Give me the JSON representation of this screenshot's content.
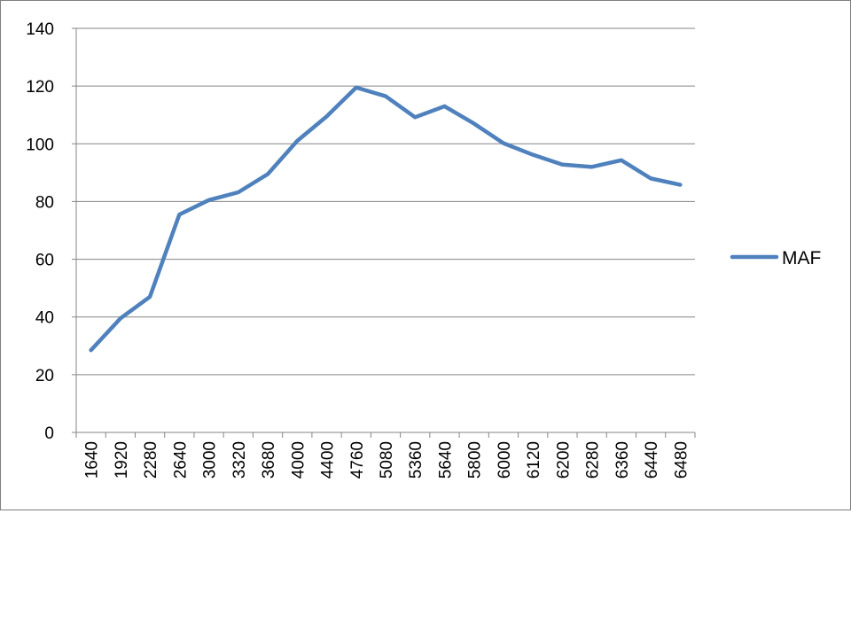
{
  "chart_data": {
    "type": "line",
    "title": "",
    "xlabel": "",
    "ylabel": "",
    "categories": [
      "1640",
      "1920",
      "2280",
      "2640",
      "3000",
      "3320",
      "3680",
      "4000",
      "4400",
      "4760",
      "5080",
      "5360",
      "5640",
      "5800",
      "6000",
      "6120",
      "6200",
      "6280",
      "6360",
      "6440",
      "6480"
    ],
    "series": [
      {
        "name": "MAF",
        "color": "#4f81bd",
        "values": [
          28.5,
          39.5,
          47,
          75.5,
          80.5,
          83.2,
          89.5,
          101,
          109.5,
          119.5,
          116.5,
          109.2,
          113,
          107,
          100.2,
          96.2,
          92.8,
          92,
          94.3,
          88,
          85.8
        ]
      }
    ],
    "ylim": [
      0,
      140
    ],
    "yticks": [
      "0",
      "20",
      "40",
      "60",
      "80",
      "100",
      "120",
      "140"
    ],
    "grid": "horizontal",
    "legend_position": "right"
  }
}
